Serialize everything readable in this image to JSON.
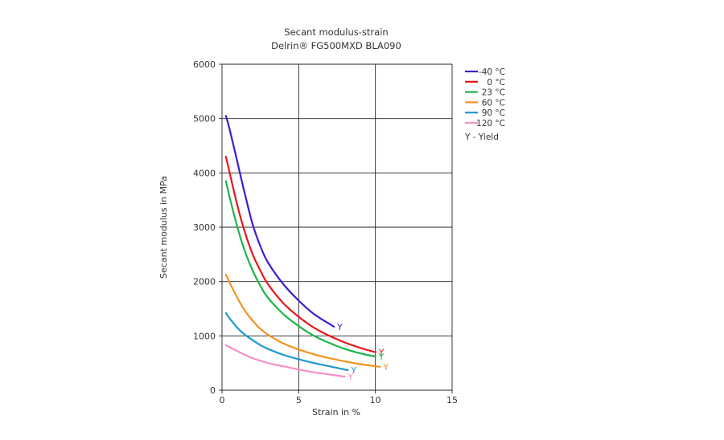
{
  "chart_data": {
    "type": "line",
    "title": "Secant modulus-strain",
    "subtitle": "Delrin® FG500MXD BLA090",
    "xlabel": "Strain in %",
    "ylabel": "Secant modulus in MPa",
    "xlim": [
      0,
      15
    ],
    "ylim": [
      0,
      6000
    ],
    "xticks": [
      "0",
      "5",
      "10",
      "15"
    ],
    "yticks": [
      "0",
      "1000",
      "2000",
      "3000",
      "4000",
      "5000",
      "6000"
    ],
    "grid": true,
    "legend_position": "right",
    "legend_note": "Y - Yield",
    "yield_marker": "Y",
    "series": [
      {
        "name": "-40 °C",
        "color": "#3a1fd0",
        "x": [
          0.25,
          0.5,
          1.0,
          1.5,
          2.0,
          2.5,
          3.0,
          4.0,
          5.0,
          6.0,
          7.0,
          7.3
        ],
        "y": [
          5050,
          4800,
          4200,
          3600,
          3050,
          2650,
          2350,
          1950,
          1650,
          1400,
          1220,
          1170
        ]
      },
      {
        "name": "0 °C",
        "color": "#e8161b",
        "x": [
          0.25,
          0.5,
          1.0,
          1.5,
          2.0,
          2.5,
          3.0,
          4.0,
          5.0,
          6.0,
          7.0,
          8.0,
          9.0,
          10.0
        ],
        "y": [
          4300,
          4000,
          3400,
          2900,
          2500,
          2200,
          1950,
          1600,
          1350,
          1150,
          1000,
          880,
          780,
          700
        ]
      },
      {
        "name": "23 °C",
        "color": "#1fb44a",
        "x": [
          0.25,
          0.5,
          1.0,
          1.5,
          2.0,
          2.5,
          3.0,
          4.0,
          5.0,
          6.0,
          7.0,
          8.0,
          9.0,
          10.0
        ],
        "y": [
          3850,
          3550,
          3000,
          2550,
          2200,
          1920,
          1700,
          1400,
          1180,
          1000,
          870,
          760,
          680,
          620
        ]
      },
      {
        "name": "60 °C",
        "color": "#f4921e",
        "x": [
          0.25,
          0.5,
          1.0,
          1.5,
          2.0,
          2.5,
          3.0,
          4.0,
          5.0,
          6.0,
          7.0,
          8.0,
          9.0,
          10.3
        ],
        "y": [
          2130,
          1980,
          1700,
          1460,
          1280,
          1130,
          1020,
          860,
          750,
          660,
          590,
          530,
          480,
          430
        ]
      },
      {
        "name": "90 °C",
        "color": "#1e98d6",
        "x": [
          0.25,
          0.5,
          1.0,
          1.5,
          2.0,
          2.5,
          3.0,
          4.0,
          5.0,
          6.0,
          7.0,
          8.2
        ],
        "y": [
          1420,
          1320,
          1150,
          1020,
          920,
          830,
          760,
          650,
          570,
          500,
          440,
          370
        ]
      },
      {
        "name": "120 °C",
        "color": "#f58fc6",
        "x": [
          0.25,
          0.5,
          1.0,
          1.5,
          2.0,
          3.0,
          4.0,
          5.0,
          6.0,
          7.0,
          8.0
        ],
        "y": [
          830,
          790,
          720,
          650,
          590,
          500,
          440,
          380,
          330,
          290,
          250
        ]
      }
    ]
  }
}
